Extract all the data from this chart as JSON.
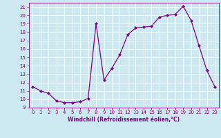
{
  "x": [
    0,
    1,
    2,
    3,
    4,
    5,
    6,
    7,
    8,
    9,
    10,
    11,
    12,
    13,
    14,
    15,
    16,
    17,
    18,
    19,
    20,
    21,
    22,
    23
  ],
  "y": [
    11.5,
    11.0,
    10.7,
    9.8,
    9.6,
    9.6,
    9.7,
    10.1,
    19.0,
    12.3,
    13.7,
    15.3,
    17.7,
    18.5,
    18.6,
    18.7,
    19.8,
    20.0,
    20.1,
    21.1,
    19.4,
    16.4,
    13.4,
    11.5
  ],
  "line_color": "#800080",
  "marker": "D",
  "marker_size": 2,
  "bg_color": "#cce8f0",
  "grid_color": "#ffffff",
  "xlabel": "Windchill (Refroidissement éolien,°C)",
  "xlabel_color": "#800080",
  "tick_color": "#800080",
  "ylim": [
    9,
    21.5
  ],
  "xlim": [
    -0.5,
    23.5
  ],
  "yticks": [
    9,
    10,
    11,
    12,
    13,
    14,
    15,
    16,
    17,
    18,
    19,
    20,
    21
  ],
  "xticks": [
    0,
    1,
    2,
    3,
    4,
    5,
    6,
    7,
    8,
    9,
    10,
    11,
    12,
    13,
    14,
    15,
    16,
    17,
    18,
    19,
    20,
    21,
    22,
    23
  ],
  "tick_fontsize": 5,
  "xlabel_fontsize": 5.5,
  "linewidth": 0.9
}
